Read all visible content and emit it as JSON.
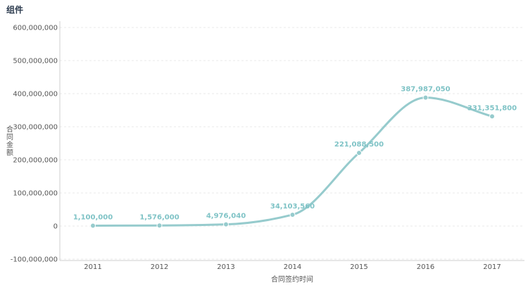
{
  "header": {
    "title": "组件"
  },
  "chart_data": {
    "type": "line",
    "title": "组件",
    "xlabel": "合同签约时间",
    "ylabel": "合同金额",
    "categories": [
      "2011",
      "2012",
      "2013",
      "2014",
      "2015",
      "2016",
      "2017"
    ],
    "series": [
      {
        "values": [
          1100000,
          1576000,
          4976040,
          34103560,
          221088500,
          387987050,
          331351800
        ],
        "labels": [
          "1,100,000",
          "1,576,000",
          "4,976,040",
          "34,103,560",
          "221,088,500",
          "387,987,050",
          "331,351,800"
        ],
        "color": "#96cbcd"
      }
    ],
    "ylim": [
      -100000000,
      600000000
    ],
    "yticks": [
      -100000000,
      0,
      100000000,
      200000000,
      300000000,
      400000000,
      500000000,
      600000000
    ],
    "ytick_labels": [
      "-100,000,000",
      "0",
      "100,000,000",
      "200,000,000",
      "300,000,000",
      "400,000,000",
      "500,000,000",
      "600,000,000"
    ],
    "grid": true,
    "smooth": true
  }
}
